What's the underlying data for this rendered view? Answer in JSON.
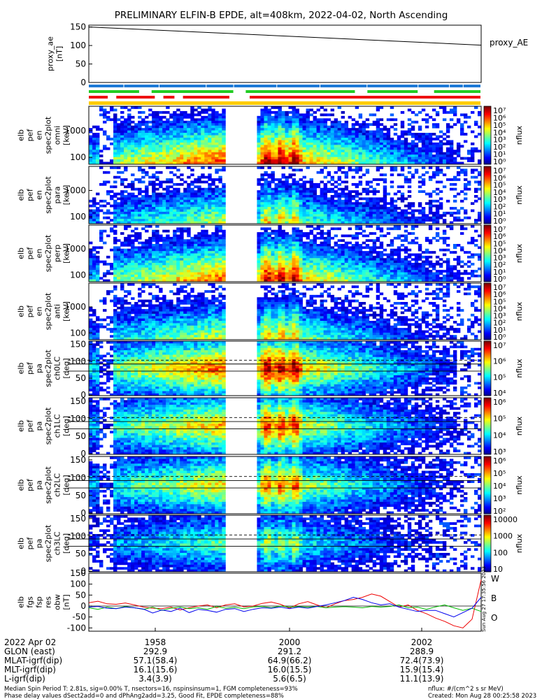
{
  "title": "PRELIMINARY ELFIN-B EPDE, alt=408km, 2022-04-02, North Ascending",
  "colors": {
    "bar_blue": "#1e7ad6",
    "bar_green": "#22cc22",
    "bar_red": "#ee1111",
    "bar_yellow": "#ffcc00",
    "w": "#ee0000",
    "b": "#00bb00",
    "o": "#0000ee"
  },
  "chart_data": [
    {
      "panel": "proxy_ae",
      "type": "line",
      "ylabel": [
        "proxy_ae",
        "[nT]"
      ],
      "yticks": [
        "150",
        "100",
        "50",
        "0"
      ],
      "ylim": [
        0,
        155
      ],
      "series": [
        {
          "name": "proxy_AE",
          "start": 150,
          "end": 101
        }
      ]
    },
    {
      "panel": "status_bars",
      "type": "bar",
      "rows": [
        {
          "color": "blue",
          "segments": [
            [
              0.0,
              0.09
            ],
            [
              0.09,
              0.18
            ],
            [
              0.18,
              0.3
            ],
            [
              0.3,
              0.37
            ],
            [
              0.37,
              0.48
            ],
            [
              0.48,
              0.59
            ],
            [
              0.59,
              0.71
            ],
            [
              0.71,
              0.84
            ],
            [
              0.84,
              0.92
            ],
            [
              0.92,
              0.955
            ],
            [
              0.955,
              1.0
            ]
          ]
        },
        {
          "color": "green",
          "segments": [
            [
              0.0,
              0.13
            ],
            [
              0.16,
              0.37
            ],
            [
              0.4,
              0.68
            ],
            [
              0.71,
              0.84
            ],
            [
              0.88,
              1.0
            ]
          ]
        },
        {
          "color": "red",
          "segments": [
            [
              0.0,
              0.05
            ],
            [
              0.07,
              0.17
            ],
            [
              0.19,
              0.22
            ],
            [
              0.24,
              0.36
            ],
            [
              0.41,
              1.0
            ]
          ]
        },
        {
          "color": "yellow",
          "segments": [
            [
              0.0,
              1.0
            ]
          ]
        }
      ]
    },
    {
      "panel": "omni_1",
      "type": "heatmap",
      "ylabel": [
        "elb",
        "pef",
        "en",
        "spec2plot",
        "omni",
        "[keV]"
      ],
      "yticks": [
        "1000",
        "100"
      ],
      "cbticks": [
        "10⁷",
        "10⁶",
        "10⁵",
        "10⁴",
        "10³",
        "10²",
        "10¹",
        "10⁰"
      ],
      "cblabel": "nflux"
    },
    {
      "panel": "omni_2",
      "type": "heatmap",
      "ylabel": [
        "elb",
        "pef",
        "en",
        "spec2plot",
        "para",
        "[keV]"
      ],
      "yticks": [
        "1000",
        "100"
      ],
      "cbticks": [
        "10⁷",
        "10⁶",
        "10⁵",
        "10⁴",
        "10³",
        "10²",
        "10¹",
        "10⁰"
      ],
      "cblabel": "nflux"
    },
    {
      "panel": "omni_3",
      "type": "heatmap",
      "ylabel": [
        "elb",
        "pef",
        "en",
        "spec2plot",
        "perp",
        "[keV]"
      ],
      "yticks": [
        "1000",
        "100"
      ],
      "cbticks": [
        "10⁷",
        "10⁶",
        "10⁵",
        "10⁴",
        "10³",
        "10²",
        "10¹",
        "10⁰"
      ],
      "cblabel": "nflux"
    },
    {
      "panel": "omni_4",
      "type": "heatmap",
      "ylabel": [
        "elb",
        "pef",
        "en",
        "spec2plot",
        "anti",
        "[keV]"
      ],
      "yticks": [
        "1000",
        "100"
      ],
      "cbticks": [
        "10⁷",
        "10⁶",
        "10⁵",
        "10⁴",
        "10³",
        "10²",
        "10¹",
        "10⁰"
      ],
      "cblabel": "nflux"
    },
    {
      "panel": "pa_0",
      "type": "heatmap",
      "ylabel": [
        "elb",
        "pef",
        "pa",
        "spec2plot",
        "ch0LC",
        "[deg]"
      ],
      "yticks": [
        "150",
        "100",
        "50",
        "0"
      ],
      "cbticks": [
        "10⁷",
        "10⁶",
        "10⁵",
        "10⁴"
      ],
      "cblabel": "nflux"
    },
    {
      "panel": "pa_1",
      "type": "heatmap",
      "ylabel": [
        "elb",
        "pef",
        "pa",
        "spec2plot",
        "ch1LC",
        "[deg]"
      ],
      "yticks": [
        "150",
        "100",
        "50",
        "0"
      ],
      "cbticks": [
        "10⁶",
        "10⁵",
        "10⁴",
        "10³"
      ],
      "cblabel": "nflux"
    },
    {
      "panel": "pa_2",
      "type": "heatmap",
      "ylabel": [
        "elb",
        "pef",
        "pa",
        "spec2plot",
        "ch2LC",
        "[deg]"
      ],
      "yticks": [
        "150",
        "100",
        "50",
        "0"
      ],
      "cbticks": [
        "10⁶",
        "10⁵",
        "10⁴",
        "10³",
        "10²"
      ],
      "cblabel": "nflux"
    },
    {
      "panel": "pa_3",
      "type": "heatmap",
      "ylabel": [
        "elb",
        "pef",
        "pa",
        "spec2plot",
        "ch3LC",
        "[deg]"
      ],
      "yticks": [
        "150",
        "100",
        "50",
        "0"
      ],
      "cbticks": [
        "10000",
        "1000",
        "100",
        "10"
      ],
      "cblabel": "nflux"
    },
    {
      "panel": "fgs",
      "type": "line",
      "ylabel": [
        "elb",
        "fgs",
        "fsp",
        "res",
        "obw",
        "[nT]"
      ],
      "yticks": [
        "150",
        "100",
        "50",
        "0",
        "-50",
        "-100"
      ],
      "ylim": [
        -115,
        150
      ],
      "series": [
        {
          "name": "W",
          "values": [
            15,
            22,
            10,
            8,
            14,
            5,
            -5,
            -10,
            -12,
            -5,
            -18,
            -8,
            0,
            5,
            -8,
            5,
            10,
            -4,
            0,
            12,
            18,
            8,
            -10,
            10,
            20,
            5,
            -8,
            10,
            25,
            30,
            40,
            55,
            45,
            20,
            -5,
            5,
            -20,
            -35,
            -55,
            -70,
            -90,
            -100,
            -60,
            120
          ]
        },
        {
          "name": "B",
          "values": [
            -8,
            -15,
            -5,
            -12,
            -2,
            -8,
            -15,
            -5,
            -20,
            -10,
            -5,
            -12,
            -8,
            -15,
            -2,
            -10,
            -6,
            -12,
            -4,
            -2,
            -8,
            0,
            -5,
            -3,
            -5,
            -2,
            -8,
            -5,
            -3,
            -5,
            -8,
            -2,
            -5,
            -2,
            5,
            -8,
            -5,
            -15,
            -4,
            5,
            -8,
            -20,
            -10,
            -25
          ]
        },
        {
          "name": "O",
          "values": [
            -5,
            -2,
            -10,
            -12,
            -5,
            -8,
            -14,
            -32,
            -18,
            -25,
            -10,
            -30,
            -15,
            -20,
            -28,
            -15,
            -12,
            -25,
            -15,
            -8,
            -10,
            -5,
            -12,
            -5,
            -10,
            -2,
            5,
            15,
            25,
            40,
            30,
            15,
            5,
            10,
            -5,
            -15,
            -25,
            -20,
            -20,
            -35,
            -50,
            -30,
            -10,
            40
          ]
        }
      ],
      "legend": [
        "W",
        "B",
        "O"
      ]
    }
  ],
  "xaxis": {
    "rows": [
      {
        "label": "2022 Apr 02",
        "values": [
          "1958",
          "2000",
          "2002"
        ]
      },
      {
        "label": "GLON (east)",
        "values": [
          "292.9",
          "291.2",
          "288.9"
        ]
      },
      {
        "label": "MLAT-igrf(dip)",
        "values": [
          "57.1(58.4)",
          "64.9(66.2)",
          "72.4(73.9)"
        ]
      },
      {
        "label": "MLT-igrf(dip)",
        "values": [
          "16.1(15.6)",
          "16.0(15.5)",
          "15.9(15.4)"
        ]
      },
      {
        "label": "L-igrf(dip)",
        "values": [
          "3.4(3.9)",
          "5.6(6.5)",
          "11.1(13.9)"
        ]
      }
    ]
  },
  "footer": {
    "left1": "Median Spin Period T: 2.81s, sig=0.00% T, nsectors=16, nspinsinsum=1, FGM completeness=93%",
    "left2": "Phase delay values dSect2add=0 and dPhAng2add=3.25, Good Fit, EPDE completeness=88%",
    "right1": "nflux: #/(cm^2 s sr MeV)",
    "right2": "Created: Mon Aug 28 00:25:58 2023",
    "side_stamp": "Sun Aug 27 17:35:56 2023"
  }
}
